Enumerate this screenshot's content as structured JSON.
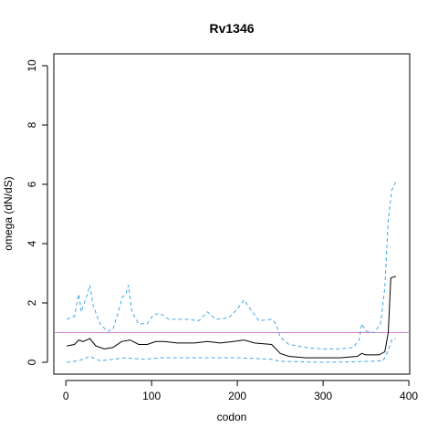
{
  "chart_data": {
    "type": "line",
    "title": "Rv1346",
    "xlabel": "codon",
    "ylabel": "omega (dN/dS)",
    "xlim": [
      -14,
      401
    ],
    "ylim": [
      -0.4,
      10.4
    ],
    "xticks": [
      0,
      100,
      200,
      300,
      400
    ],
    "yticks": [
      0,
      2,
      4,
      6,
      8,
      10
    ],
    "reference_line": {
      "value": 1,
      "color": "#d67fd6"
    },
    "series": [
      {
        "color": "#000000",
        "dash": false,
        "x": [
          1,
          10,
          15,
          20,
          28,
          35,
          45,
          55,
          65,
          75,
          85,
          95,
          105,
          115,
          130,
          150,
          165,
          180,
          195,
          208,
          220,
          240,
          250,
          260,
          280,
          300,
          320,
          340,
          345,
          350,
          365,
          372,
          376,
          379,
          385
        ],
        "values": [
          0.55,
          0.6,
          0.75,
          0.7,
          0.8,
          0.55,
          0.45,
          0.5,
          0.7,
          0.75,
          0.6,
          0.6,
          0.7,
          0.7,
          0.65,
          0.65,
          0.7,
          0.65,
          0.7,
          0.75,
          0.65,
          0.6,
          0.3,
          0.2,
          0.15,
          0.15,
          0.15,
          0.2,
          0.3,
          0.25,
          0.25,
          0.35,
          1.0,
          2.85,
          2.9
        ]
      },
      {
        "color": "#3fa9e8",
        "dash": true,
        "x": [
          1,
          10,
          15,
          18,
          25,
          28,
          32,
          40,
          48,
          55,
          62,
          66,
          70,
          73,
          77,
          85,
          95,
          102,
          110,
          120,
          140,
          155,
          165,
          175,
          190,
          200,
          208,
          215,
          225,
          240,
          245,
          250,
          260,
          280,
          300,
          320,
          335,
          342,
          345,
          350,
          360,
          367,
          372,
          376,
          380,
          385
        ],
        "values": [
          1.45,
          1.55,
          2.3,
          1.7,
          2.3,
          2.6,
          1.9,
          1.3,
          1.05,
          1.1,
          1.8,
          2.2,
          2.3,
          2.6,
          1.7,
          1.3,
          1.3,
          1.6,
          1.65,
          1.45,
          1.45,
          1.4,
          1.7,
          1.45,
          1.5,
          1.8,
          2.1,
          1.8,
          1.4,
          1.45,
          1.3,
          0.85,
          0.6,
          0.5,
          0.45,
          0.45,
          0.5,
          0.75,
          1.3,
          1.05,
          1.0,
          1.3,
          2.5,
          4.8,
          5.8,
          6.1
        ]
      },
      {
        "color": "#3fa9e8",
        "dash": true,
        "x": [
          1,
          15,
          28,
          40,
          70,
          90,
          110,
          200,
          240,
          250,
          300,
          340,
          370,
          376,
          380,
          385
        ],
        "values": [
          0.0,
          0.05,
          0.2,
          0.05,
          0.15,
          0.1,
          0.15,
          0.15,
          0.1,
          0.03,
          0.0,
          0.02,
          0.05,
          0.4,
          0.75,
          0.8
        ]
      }
    ]
  }
}
